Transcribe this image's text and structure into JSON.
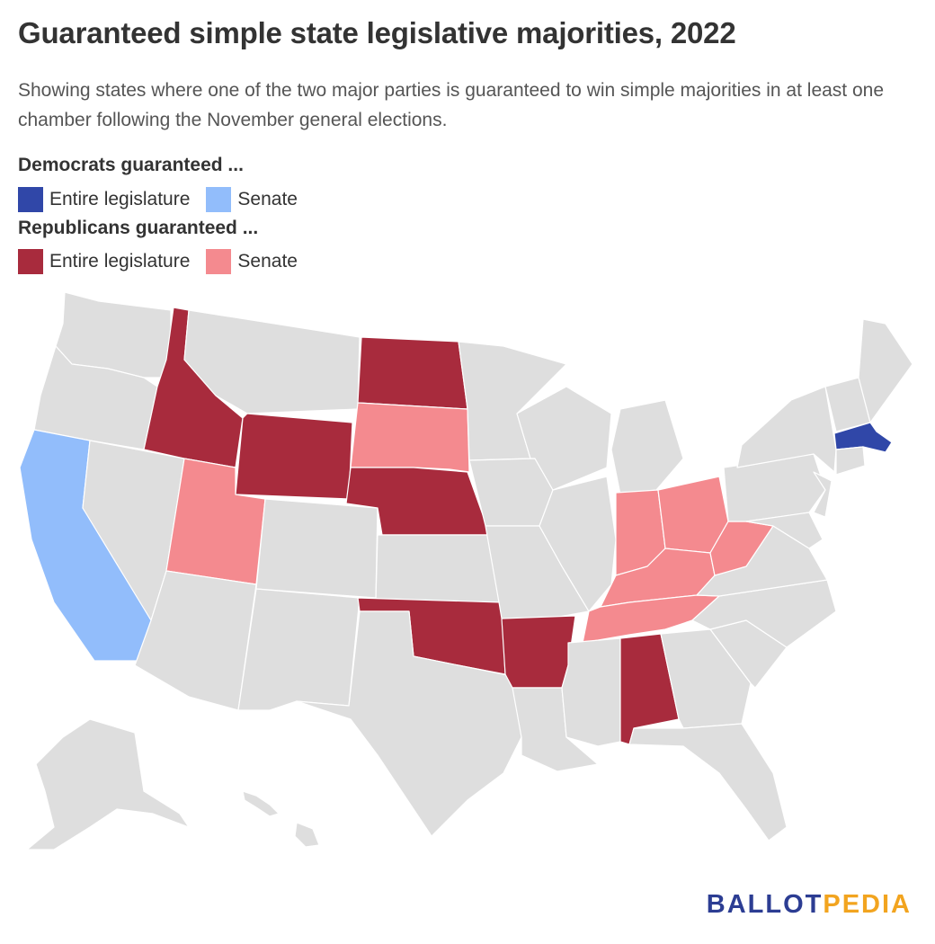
{
  "title": "Guaranteed simple state legislative majorities, 2022",
  "subtitle": "Showing states where one of the two major parties is guaranteed to win simple majorities in at least one chamber following the November general elections.",
  "legend": {
    "dem_heading": "Democrats guaranteed ...",
    "rep_heading": "Republicans guaranteed ...",
    "dem_items": [
      {
        "label": "Entire legislature",
        "color": "#3047a8"
      },
      {
        "label": "Senate",
        "color": "#92bdfb"
      }
    ],
    "rep_items": [
      {
        "label": "Entire legislature",
        "color": "#a82b3d"
      },
      {
        "label": "Senate",
        "color": "#f48a8f"
      }
    ]
  },
  "colors": {
    "none": "#dedede",
    "dem_entire": "#3047a8",
    "dem_senate": "#92bdfb",
    "rep_entire": "#a82b3d",
    "rep_senate": "#f48a8f"
  },
  "states": {
    "dem_entire_legislature": [
      "Massachusetts"
    ],
    "dem_senate": [
      "California"
    ],
    "rep_entire_legislature": [
      "Idaho",
      "Wyoming",
      "North Dakota",
      "Nebraska",
      "Oklahoma",
      "Arkansas",
      "Alabama"
    ],
    "rep_senate": [
      "Utah",
      "South Dakota",
      "Indiana",
      "Ohio",
      "Kentucky",
      "Tennessee",
      "West Virginia"
    ]
  },
  "logo": {
    "part1": "BALLOT",
    "part2": "PEDIA"
  }
}
